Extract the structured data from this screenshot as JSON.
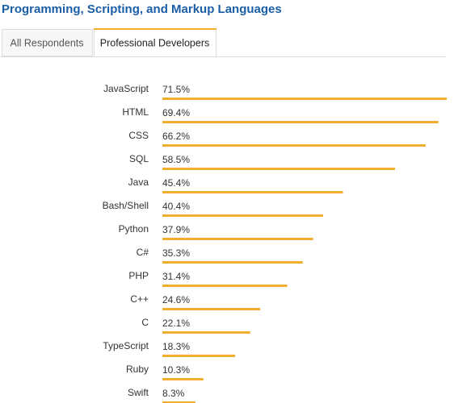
{
  "chart_data": {
    "type": "bar",
    "orientation": "horizontal",
    "title": "Programming, Scripting, and Markup Languages",
    "tabs": [
      "All Respondents",
      "Professional Developers"
    ],
    "active_tab": 1,
    "categories": [
      "JavaScript",
      "HTML",
      "CSS",
      "SQL",
      "Java",
      "Bash/Shell",
      "Python",
      "C#",
      "PHP",
      "C++",
      "C",
      "TypeScript",
      "Ruby",
      "Swift"
    ],
    "values": [
      71.5,
      69.4,
      66.2,
      58.5,
      45.4,
      40.4,
      37.9,
      35.3,
      31.4,
      24.6,
      22.1,
      18.3,
      10.3,
      8.3
    ],
    "value_labels": [
      "71.5%",
      "69.4%",
      "66.2%",
      "58.5%",
      "45.4%",
      "40.4%",
      "37.9%",
      "35.3%",
      "31.4%",
      "24.6%",
      "22.1%",
      "18.3%",
      "10.3%",
      "8.3%"
    ],
    "color": "#f2ad2e"
  }
}
